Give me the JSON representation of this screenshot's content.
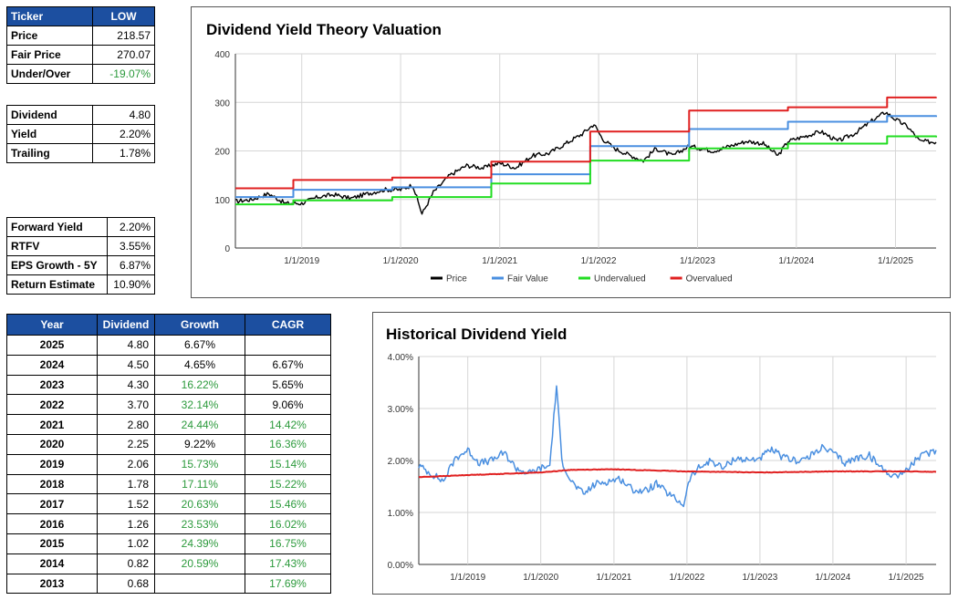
{
  "summary": {
    "ticker_label": "Ticker",
    "ticker": "LOW",
    "rows": [
      {
        "label": "Price",
        "value": "218.57",
        "green": false
      },
      {
        "label": "Fair Price",
        "value": "270.07",
        "green": false
      },
      {
        "label": "Under/Over",
        "value": "-19.07%",
        "green": true
      }
    ]
  },
  "dividend_box": {
    "rows": [
      {
        "label": "Dividend",
        "value": "4.80"
      },
      {
        "label": "Yield",
        "value": "2.20%"
      },
      {
        "label": "Trailing",
        "value": "1.78%"
      }
    ]
  },
  "returns_box": {
    "rows": [
      {
        "label": "Forward Yield",
        "value": "2.20%"
      },
      {
        "label": "RTFV",
        "value": "3.55%"
      },
      {
        "label": "EPS Growth - 5Y",
        "value": "6.87%"
      },
      {
        "label": "Return Estimate",
        "value": "10.90%"
      }
    ]
  },
  "history_table": {
    "headers": [
      "Year",
      "Dividend",
      "Growth",
      "CAGR"
    ],
    "rows": [
      {
        "year": "2025",
        "dividend": "4.80",
        "growth": "6.67%",
        "growth_green": false,
        "cagr": ""
      },
      {
        "year": "2024",
        "dividend": "4.50",
        "growth": "4.65%",
        "growth_green": false,
        "cagr": "6.67%",
        "cagr_green": false
      },
      {
        "year": "2023",
        "dividend": "4.30",
        "growth": "16.22%",
        "growth_green": true,
        "cagr": "5.65%",
        "cagr_green": false
      },
      {
        "year": "2022",
        "dividend": "3.70",
        "growth": "32.14%",
        "growth_green": true,
        "cagr": "9.06%",
        "cagr_green": false
      },
      {
        "year": "2021",
        "dividend": "2.80",
        "growth": "24.44%",
        "growth_green": true,
        "cagr": "14.42%",
        "cagr_green": true
      },
      {
        "year": "2020",
        "dividend": "2.25",
        "growth": "9.22%",
        "growth_green": false,
        "cagr": "16.36%",
        "cagr_green": true
      },
      {
        "year": "2019",
        "dividend": "2.06",
        "growth": "15.73%",
        "growth_green": true,
        "cagr": "15.14%",
        "cagr_green": true
      },
      {
        "year": "2018",
        "dividend": "1.78",
        "growth": "17.11%",
        "growth_green": true,
        "cagr": "15.22%",
        "cagr_green": true
      },
      {
        "year": "2017",
        "dividend": "1.52",
        "growth": "20.63%",
        "growth_green": true,
        "cagr": "15.46%",
        "cagr_green": true
      },
      {
        "year": "2016",
        "dividend": "1.26",
        "growth": "23.53%",
        "growth_green": true,
        "cagr": "16.02%",
        "cagr_green": true
      },
      {
        "year": "2015",
        "dividend": "1.02",
        "growth": "24.39%",
        "growth_green": true,
        "cagr": "16.75%",
        "cagr_green": true
      },
      {
        "year": "2014",
        "dividend": "0.82",
        "growth": "20.59%",
        "growth_green": true,
        "cagr": "17.43%",
        "cagr_green": true
      },
      {
        "year": "2013",
        "dividend": "0.68",
        "growth": "",
        "growth_green": false,
        "cagr": "17.69%",
        "cagr_green": true
      }
    ]
  },
  "colors": {
    "header_blue": "#1c4fa0",
    "green_text": "#2c9a3c",
    "price": "#000000",
    "fair": "#4a8fe0",
    "under": "#22dd22",
    "over": "#e02020",
    "yield": "#4a8fe0",
    "avg": "#e02020"
  },
  "chart_data": [
    {
      "type": "line",
      "title": "Dividend Yield Theory Valuation",
      "xlabel": "",
      "ylabel": "",
      "xlim": [
        "2018-05-01",
        "2025-05-31"
      ],
      "ylim": [
        0,
        400
      ],
      "y_ticks": [
        "0",
        "100",
        "200",
        "300",
        "400"
      ],
      "x_ticks": [
        "1/1/2019",
        "1/1/2020",
        "1/1/2021",
        "1/1/2022",
        "1/1/2023",
        "1/1/2024",
        "1/1/2025"
      ],
      "grid": true,
      "legend": "bottom",
      "series": [
        {
          "name": "Price",
          "color": "#000000",
          "step": false,
          "x": [
            "2018-05-01",
            "2018-07-01",
            "2018-09-01",
            "2018-11-01",
            "2019-01-01",
            "2019-03-01",
            "2019-05-01",
            "2019-07-01",
            "2019-09-01",
            "2019-11-01",
            "2020-01-01",
            "2020-02-15",
            "2020-03-20",
            "2020-05-01",
            "2020-07-01",
            "2020-09-01",
            "2020-11-01",
            "2021-01-01",
            "2021-03-01",
            "2021-05-01",
            "2021-07-01",
            "2021-09-01",
            "2021-11-01",
            "2021-12-15",
            "2022-01-15",
            "2022-03-01",
            "2022-05-01",
            "2022-06-15",
            "2022-08-01",
            "2022-10-01",
            "2022-12-01",
            "2023-01-15",
            "2023-03-01",
            "2023-05-01",
            "2023-07-01",
            "2023-09-01",
            "2023-10-25",
            "2023-12-01",
            "2024-02-01",
            "2024-04-01",
            "2024-06-01",
            "2024-08-01",
            "2024-10-01",
            "2024-11-25",
            "2025-01-01",
            "2025-02-15",
            "2025-04-01",
            "2025-05-31"
          ],
          "y": [
            96,
            100,
            112,
            92,
            92,
            105,
            110,
            102,
            112,
            120,
            120,
            130,
            70,
            115,
            150,
            170,
            165,
            175,
            165,
            190,
            195,
            215,
            235,
            255,
            225,
            205,
            190,
            180,
            205,
            190,
            210,
            205,
            200,
            210,
            220,
            215,
            190,
            220,
            230,
            240,
            220,
            235,
            260,
            280,
            265,
            250,
            220,
            218
          ]
        },
        {
          "name": "Fair Value",
          "color": "#4a8fe0",
          "step": true,
          "x": [
            "2018-05-01",
            "2018-12-01",
            "2019-12-01",
            "2020-12-01",
            "2021-12-01",
            "2022-12-01",
            "2023-12-01",
            "2024-12-01",
            "2025-05-31"
          ],
          "y": [
            105,
            120,
            125,
            152,
            210,
            245,
            260,
            272,
            270
          ]
        },
        {
          "name": "Undervalued",
          "color": "#22dd22",
          "step": true,
          "x": [
            "2018-05-01",
            "2018-12-01",
            "2019-12-01",
            "2020-12-01",
            "2021-12-01",
            "2022-12-01",
            "2023-12-01",
            "2024-12-01",
            "2025-05-31"
          ],
          "y": [
            90,
            98,
            105,
            133,
            180,
            205,
            215,
            230,
            228
          ]
        },
        {
          "name": "Overvalued",
          "color": "#e02020",
          "step": true,
          "x": [
            "2018-05-01",
            "2018-12-01",
            "2019-12-01",
            "2020-12-01",
            "2021-12-01",
            "2022-12-01",
            "2023-12-01",
            "2024-12-01",
            "2025-05-31"
          ],
          "y": [
            123,
            140,
            145,
            178,
            240,
            283,
            290,
            310,
            311
          ]
        }
      ]
    },
    {
      "type": "line",
      "title": "Historical Dividend Yield",
      "xlabel": "",
      "ylabel": "",
      "xlim": [
        "2018-05-01",
        "2025-05-31"
      ],
      "ylim": [
        0,
        4
      ],
      "y_ticks": [
        "0.00%",
        "1.00%",
        "2.00%",
        "3.00%",
        "4.00%"
      ],
      "x_ticks": [
        "1/1/2019",
        "1/1/2020",
        "1/1/2021",
        "1/1/2022",
        "1/1/2023",
        "1/1/2024",
        "1/1/2025"
      ],
      "grid": true,
      "series": [
        {
          "color": "#4a8fe0",
          "step": false,
          "x": [
            "2018-05-01",
            "2018-07-01",
            "2018-09-01",
            "2018-11-01",
            "2019-01-01",
            "2019-03-01",
            "2019-05-01",
            "2019-07-01",
            "2019-09-01",
            "2019-11-01",
            "2020-01-01",
            "2020-02-15",
            "2020-03-20",
            "2020-04-15",
            "2020-06-01",
            "2020-08-01",
            "2020-10-01",
            "2020-12-01",
            "2021-02-01",
            "2021-04-01",
            "2021-06-01",
            "2021-08-01",
            "2021-10-01",
            "2021-12-15",
            "2022-01-15",
            "2022-03-01",
            "2022-05-01",
            "2022-07-01",
            "2022-09-01",
            "2022-11-01",
            "2023-01-01",
            "2023-03-01",
            "2023-05-01",
            "2023-07-01",
            "2023-09-01",
            "2023-11-01",
            "2024-01-01",
            "2024-03-01",
            "2024-05-01",
            "2024-07-01",
            "2024-09-01",
            "2024-11-01",
            "2025-01-01",
            "2025-03-01",
            "2025-05-31"
          ],
          "y": [
            1.9,
            1.75,
            1.6,
            2.05,
            2.2,
            1.95,
            2.0,
            2.15,
            1.85,
            1.75,
            1.85,
            1.9,
            3.45,
            2.0,
            1.6,
            1.35,
            1.55,
            1.6,
            1.65,
            1.45,
            1.4,
            1.55,
            1.35,
            1.15,
            1.65,
            1.85,
            2.0,
            1.85,
            2.05,
            2.0,
            2.05,
            2.2,
            2.05,
            2.0,
            2.05,
            2.25,
            2.15,
            1.95,
            2.05,
            2.1,
            1.85,
            1.7,
            1.8,
            2.05,
            2.2
          ]
        },
        {
          "color": "#e02020",
          "step": false,
          "x": [
            "2018-05-01",
            "2019-01-01",
            "2020-01-01",
            "2020-06-01",
            "2021-01-01",
            "2022-01-01",
            "2023-01-01",
            "2024-01-01",
            "2025-01-01",
            "2025-05-31"
          ],
          "y": [
            1.68,
            1.72,
            1.77,
            1.82,
            1.83,
            1.79,
            1.77,
            1.79,
            1.79,
            1.78
          ]
        }
      ]
    }
  ]
}
